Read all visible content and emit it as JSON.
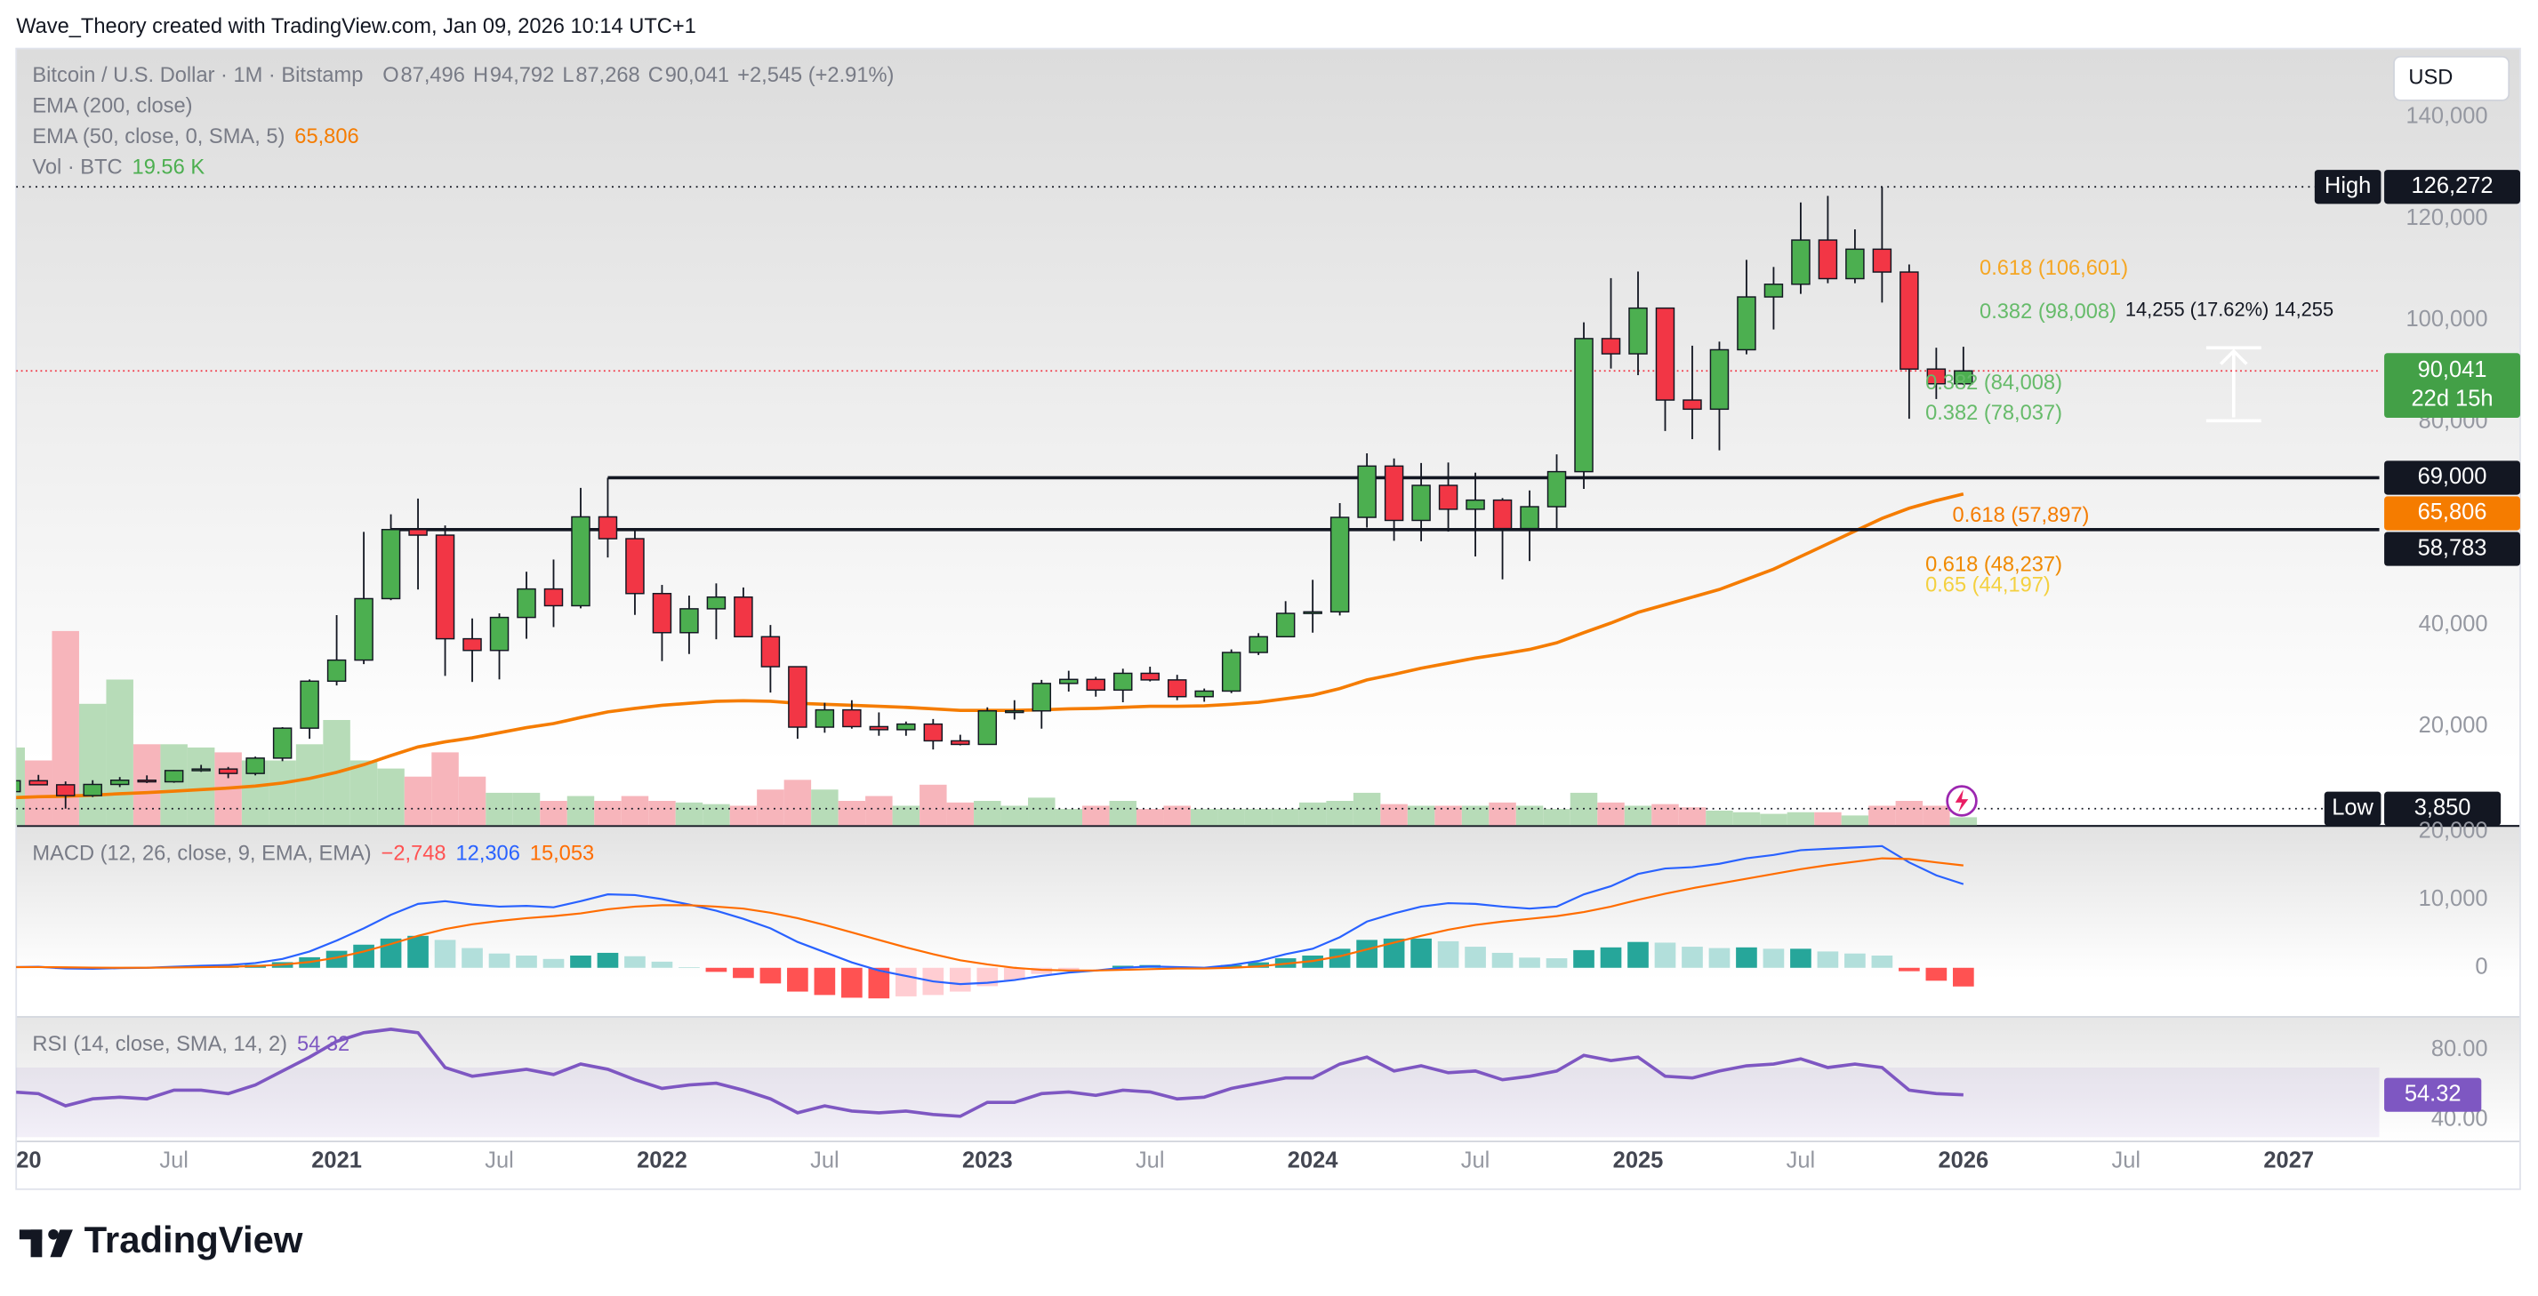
{
  "header": {
    "title": "Wave_Theory created with TradingView.com, Jan 09, 2026 10:14 UTC+1"
  },
  "branding": "TradingView",
  "chart_data": [
    {
      "type": "candlestick",
      "title": "Bitcoin / U.S. Dollar · 1M · Bitstamp",
      "ohlc_legend": [
        {
          "key": "O",
          "value": "87,496"
        },
        {
          "key": "H",
          "value": "94,792"
        },
        {
          "key": "L",
          "value": "87,268"
        },
        {
          "key": "C",
          "value": "90,041"
        }
      ],
      "change": "+2,545 (+2.91%)",
      "currency": "USD",
      "x": [
        "2020-01",
        "2020-02",
        "2020-03",
        "2020-04",
        "2020-05",
        "2020-06",
        "2020-07",
        "2020-08",
        "2020-09",
        "2020-10",
        "2020-11",
        "2020-12",
        "2021-01",
        "2021-02",
        "2021-03",
        "2021-04",
        "2021-05",
        "2021-06",
        "2021-07",
        "2021-08",
        "2021-09",
        "2021-10",
        "2021-11",
        "2021-12",
        "2022-01",
        "2022-02",
        "2022-03",
        "2022-04",
        "2022-05",
        "2022-06",
        "2022-07",
        "2022-08",
        "2022-09",
        "2022-10",
        "2022-11",
        "2022-12",
        "2023-01",
        "2023-02",
        "2023-03",
        "2023-04",
        "2023-05",
        "2023-06",
        "2023-07",
        "2023-08",
        "2023-09",
        "2023-10",
        "2023-11",
        "2023-12",
        "2024-01",
        "2024-02",
        "2024-03",
        "2024-04",
        "2024-05",
        "2024-06",
        "2024-07",
        "2024-08",
        "2024-09",
        "2024-10",
        "2024-11",
        "2024-12",
        "2025-01",
        "2025-02",
        "2025-03",
        "2025-04",
        "2025-05",
        "2025-06",
        "2025-07",
        "2025-08",
        "2025-09",
        "2025-10",
        "2025-11",
        "2025-12",
        "2026-01"
      ],
      "open": [
        7200,
        9350,
        8550,
        6420,
        8620,
        9450,
        9140,
        11350,
        11650,
        10780,
        13800,
        19700,
        28950,
        33100,
        45200,
        58800,
        57700,
        37300,
        35000,
        41500,
        47100,
        43800,
        61300,
        57000,
        46200,
        38500,
        43200,
        45500,
        37700,
        31800,
        19900,
        23300,
        20000,
        19400,
        20500,
        17200,
        16500,
        23100,
        23100,
        28500,
        29300,
        27200,
        30500,
        29200,
        25900,
        27000,
        34600,
        37700,
        42300,
        42600,
        61200,
        71300,
        60600,
        67500,
        62800,
        64600,
        59000,
        63300,
        70200,
        96400,
        93400,
        102400,
        84300,
        82500,
        94200,
        104600,
        107100,
        115800,
        108200,
        114000,
        109500,
        90400,
        87496
      ],
      "high": [
        9600,
        10500,
        9200,
        9450,
        10070,
        10400,
        11450,
        12470,
        12070,
        14100,
        19900,
        29300,
        41950,
        58350,
        61800,
        64900,
        59600,
        41300,
        42300,
        50500,
        52900,
        67000,
        69000,
        59100,
        47900,
        45800,
        48200,
        47400,
        40000,
        31900,
        24700,
        25200,
        22800,
        21000,
        21500,
        18400,
        23800,
        25200,
        29200,
        31000,
        29800,
        31400,
        31800,
        30200,
        27500,
        35200,
        38400,
        44700,
        48900,
        64000,
        73800,
        72800,
        71900,
        72000,
        70000,
        65000,
        66500,
        73600,
        99600,
        108300,
        109600,
        102500,
        95000,
        95800,
        111900,
        110500,
        123200,
        124500,
        117900,
        126272,
        111000,
        94600,
        94792
      ],
      "low": [
        6900,
        8450,
        3850,
        6150,
        8100,
        8900,
        8950,
        11100,
        9850,
        10400,
        13200,
        17600,
        28100,
        32300,
        44900,
        47000,
        30000,
        28800,
        29300,
        37300,
        39600,
        43300,
        53300,
        42000,
        32900,
        34300,
        37200,
        37700,
        26700,
        17600,
        18800,
        19600,
        18200,
        18200,
        15500,
        16300,
        16500,
        21400,
        19600,
        26900,
        25900,
        24800,
        28900,
        25200,
        24900,
        26600,
        34100,
        37600,
        38500,
        41900,
        59200,
        56600,
        56500,
        58400,
        53500,
        49000,
        52600,
        58900,
        66800,
        90500,
        89200,
        78200,
        76600,
        74400,
        93300,
        98200,
        105200,
        107300,
        107300,
        103500,
        80600,
        84500,
        87268
      ],
      "close": [
        9350,
        8550,
        6420,
        8620,
        9450,
        9140,
        11350,
        11650,
        10780,
        13800,
        19700,
        28950,
        33100,
        45200,
        58800,
        57700,
        37300,
        35000,
        41500,
        47100,
        43800,
        61300,
        57000,
        46200,
        38500,
        43200,
        45500,
        37700,
        31800,
        19900,
        23300,
        20000,
        19400,
        20500,
        17200,
        16500,
        23100,
        23100,
        28500,
        29300,
        27200,
        30500,
        29200,
        25900,
        27000,
        34600,
        37700,
        42300,
        42600,
        61200,
        71300,
        60600,
        67500,
        62800,
        64600,
        59000,
        63300,
        70200,
        96400,
        93400,
        102400,
        84300,
        82500,
        94200,
        104600,
        107100,
        115800,
        108200,
        114000,
        109500,
        90400,
        87500,
        90041
      ],
      "close_label": "90,041",
      "countdown": "22d 15h",
      "current_color": "#43a047",
      "current_line_color": "#f23645",
      "up_color": "#4caf50",
      "down_color": "#f23645",
      "ylim": [
        600,
        153500
      ],
      "yticks": [
        {
          "value": 20000,
          "label": "20,000"
        },
        {
          "value": 40000,
          "label": "40,000"
        },
        {
          "value": 80000,
          "label": "80,000"
        },
        {
          "value": 100000,
          "label": "100,000"
        },
        {
          "value": 120000,
          "label": "120,000"
        },
        {
          "value": 140000,
          "label": "140,000"
        }
      ],
      "grid": false,
      "overlays": [
        {
          "name": "EMA (200, close)"
        },
        {
          "name": "EMA (50, close, 0, SMA, 5)",
          "color": "#f57c00",
          "value_label": "65,806",
          "values": [
            6000,
            6200,
            6300,
            6500,
            6800,
            7000,
            7300,
            7600,
            7900,
            8300,
            8900,
            9800,
            11000,
            12500,
            14300,
            16000,
            17000,
            17800,
            18800,
            19800,
            20600,
            21800,
            22900,
            23600,
            24200,
            24600,
            25000,
            25100,
            25000,
            24600,
            24400,
            24200,
            24000,
            23800,
            23500,
            23200,
            23200,
            23200,
            23300,
            23500,
            23600,
            23800,
            24000,
            24000,
            24100,
            24400,
            24800,
            25500,
            26200,
            27500,
            29200,
            30300,
            31500,
            32500,
            33500,
            34300,
            35200,
            36500,
            38500,
            40400,
            42500,
            44000,
            45500,
            47000,
            49000,
            51000,
            53500,
            56000,
            58500,
            61000,
            63000,
            64500,
            65806
          ]
        }
      ],
      "volume": {
        "name": "Vol · BTC",
        "value_label": "19.56 K",
        "up_color": "#b7dcb8",
        "down_color": "#f7b5bb",
        "values": [
          192,
          160,
          480,
          300,
          360,
          200,
          200,
          192,
          180,
          160,
          160,
          200,
          260,
          160,
          140,
          120,
          180,
          120,
          80,
          80,
          60,
          72,
          60,
          72,
          60,
          56,
          52,
          48,
          88,
          112,
          88,
          60,
          72,
          48,
          100,
          56,
          60,
          48,
          68,
          40,
          48,
          60,
          40,
          48,
          40,
          40,
          40,
          40,
          56,
          60,
          80,
          52,
          48,
          48,
          48,
          56,
          48,
          40,
          80,
          56,
          48,
          52,
          44,
          36,
          32,
          28,
          32,
          32,
          24,
          48,
          60,
          48,
          19.56
        ]
      },
      "extremes": {
        "high": {
          "label": "High",
          "value": 126272,
          "value_label": "126,272"
        },
        "low": {
          "label": "Low",
          "value": 3850,
          "value_label": "3,850"
        }
      },
      "levels": [
        {
          "value": 69000,
          "label": "69,000",
          "from": "2021-11"
        },
        {
          "value": 58783,
          "label": "58,783",
          "from": "2021-03"
        }
      ],
      "annotations": [
        {
          "text": "0.618 (106,601)",
          "color": "#f5a623",
          "value": 106601,
          "from": "2026-01"
        },
        {
          "text": "0.382 (98,008)",
          "color": "#66bb6a",
          "value": 98008,
          "from": "2026-01"
        },
        {
          "text": "0.382 (84,008)",
          "color": "#66bb6a",
          "value": 84008,
          "from": "2025-11"
        },
        {
          "text": "0.382 (78,037)",
          "color": "#66bb6a",
          "value": 78037,
          "from": "2025-11"
        },
        {
          "text": "0.618 (57,897)",
          "color": "#f57c00",
          "value": 57897,
          "from": "2025-12"
        },
        {
          "text": "0.618 (48,237)",
          "color": "#f08a00",
          "value": 48237,
          "from": "2025-11"
        },
        {
          "text": "0.65 (44,197)",
          "color": "#f4d03f",
          "value": 44197,
          "from": "2025-11"
        }
      ],
      "measure": "14,255 (17.62%) 14,255"
    },
    {
      "type": "macd",
      "title": "MACD (12, 26, close, 9, EMA, EMA)",
      "ylim": [
        -7100,
        20500
      ],
      "yticks": [
        0,
        {
          "value": 10000,
          "label": "10,000"
        },
        {
          "value": 20000,
          "label": "20,000"
        }
      ],
      "histogram": {
        "value_label": "−2,748",
        "colors": {
          "grow_above": "#26a69a",
          "fall_above": "#b2dfdb",
          "grow_below": "#ffcdd2",
          "fall_below": "#ff5252"
        },
        "values": [
          0,
          40,
          -170,
          -180,
          -60,
          -10,
          110,
          210,
          250,
          440,
          830,
          1550,
          2500,
          3400,
          4300,
          4700,
          4100,
          2900,
          2100,
          1800,
          1300,
          1800,
          2200,
          1700,
          900,
          100,
          -600,
          -1500,
          -2300,
          -3500,
          -4000,
          -4400,
          -4500,
          -4200,
          -4000,
          -3500,
          -2700,
          -1800,
          -900,
          -300,
          0,
          300,
          400,
          200,
          100,
          400,
          800,
          1400,
          1800,
          2800,
          4100,
          4300,
          4300,
          3900,
          3100,
          2200,
          1500,
          1400,
          2600,
          3000,
          3800,
          3700,
          3100,
          2900,
          3000,
          2800,
          2800,
          2400,
          2100,
          1800,
          -500,
          -1900,
          -2748
        ]
      },
      "series": [
        {
          "color": "#2962ff",
          "value_label": "12,306",
          "values": [
            100,
            150,
            -100,
            -150,
            -50,
            0,
            150,
            300,
            400,
            700,
            1300,
            2400,
            4000,
            5800,
            7800,
            9400,
            9800,
            9300,
            9000,
            9100,
            8900,
            9800,
            10800,
            10700,
            10100,
            9300,
            8400,
            7200,
            5800,
            3800,
            2300,
            800,
            -400,
            -1200,
            -2000,
            -2400,
            -2200,
            -1800,
            -1200,
            -700,
            -400,
            0,
            200,
            100,
            0,
            400,
            1000,
            2000,
            2800,
            4500,
            6800,
            8000,
            9000,
            9500,
            9400,
            9000,
            8700,
            9000,
            10800,
            12000,
            13800,
            14600,
            14800,
            15300,
            16100,
            16600,
            17300,
            17500,
            17700,
            17900,
            15500,
            13600,
            12306
          ]
        },
        {
          "color": "#ff6d00",
          "value_label": "15,053",
          "values": [
            100,
            110,
            70,
            30,
            10,
            10,
            40,
            90,
            150,
            260,
            470,
            850,
            1500,
            2400,
            3500,
            4700,
            5700,
            6400,
            6900,
            7300,
            7600,
            8000,
            8600,
            9000,
            9200,
            9200,
            9000,
            8700,
            8100,
            7300,
            6300,
            5200,
            4100,
            3000,
            2000,
            1100,
            500,
            0,
            -300,
            -400,
            -400,
            -300,
            -200,
            -100,
            -100,
            0,
            200,
            600,
            1000,
            1700,
            2700,
            3700,
            4700,
            5600,
            6300,
            6800,
            7200,
            7600,
            8200,
            9000,
            10000,
            10900,
            11700,
            12400,
            13100,
            13800,
            14500,
            15100,
            15600,
            16100,
            16000,
            15500,
            15053
          ]
        }
      ]
    },
    {
      "type": "line",
      "title": "RSI (14, close, SMA, 14, 2)",
      "ylim": [
        28,
        97.7
      ],
      "yticks": [
        {
          "value": 40,
          "label": "40.00"
        },
        {
          "value": 80,
          "label": "80.00"
        }
      ],
      "band": [
        30,
        70
      ],
      "band_color": "#7e57c2",
      "series": [
        {
          "color": "#7e57c2",
          "values": [
            56,
            55,
            48,
            52,
            53,
            52,
            57,
            57,
            55,
            60,
            68,
            76,
            85,
            90,
            92,
            90,
            70,
            65,
            67,
            69,
            66,
            72,
            69,
            63,
            58,
            60,
            61,
            57,
            52,
            44,
            48,
            45,
            44,
            45,
            43,
            42,
            50,
            50,
            55,
            56,
            54,
            57,
            56,
            52,
            53,
            58,
            61,
            64,
            64,
            72,
            76,
            68,
            71,
            67,
            68,
            63,
            65,
            68,
            77,
            74,
            76,
            65,
            64,
            68,
            71,
            72,
            75,
            70,
            72,
            70,
            57,
            55,
            54.32
          ]
        }
      ],
      "xticks": [
        {
          "value": "2020-01",
          "label": "20"
        },
        {
          "value": "2020-07",
          "label": "Jul"
        },
        {
          "value": "2021-01",
          "label": "2021"
        },
        {
          "value": "2021-07",
          "label": "Jul"
        },
        {
          "value": "2022-01",
          "label": "2022"
        },
        {
          "value": "2022-07",
          "label": "Jul"
        },
        {
          "value": "2023-01",
          "label": "2023"
        },
        {
          "value": "2023-07",
          "label": "Jul"
        },
        {
          "value": "2024-01",
          "label": "2024"
        },
        {
          "value": "2024-07",
          "label": "Jul"
        },
        {
          "value": "2025-01",
          "label": "2025"
        },
        {
          "value": "2025-07",
          "label": "Jul"
        },
        {
          "value": "2026-01",
          "label": "2026"
        },
        {
          "value": "2026-07",
          "label": "Jul"
        },
        {
          "value": "2027-01",
          "label": "2027"
        }
      ]
    }
  ]
}
